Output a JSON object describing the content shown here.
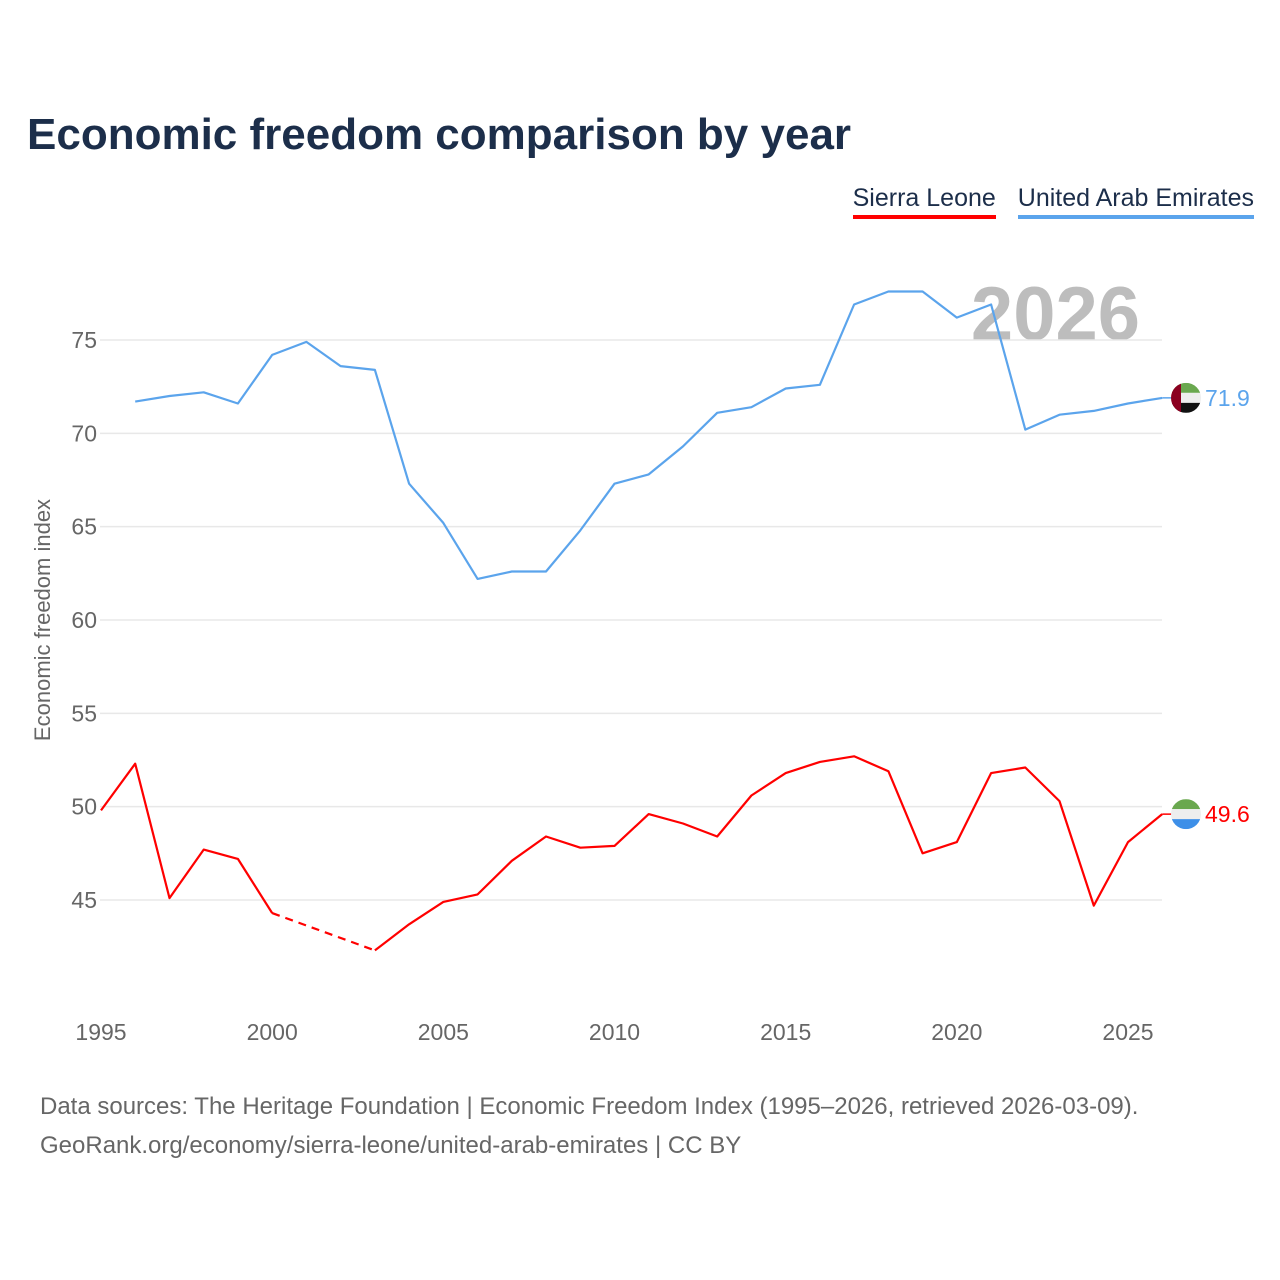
{
  "title": "Economic freedom comparison by year",
  "legend": [
    {
      "label": "Sierra Leone",
      "color": "#ff0000"
    },
    {
      "label": "United Arab Emirates",
      "color": "#5ba4ec"
    }
  ],
  "year_watermark": "2026",
  "sources": {
    "line1": "Data sources: The Heritage Foundation | Economic Freedom Index (1995–2026, retrieved 2026-03-09).",
    "line2": "GeoRank.org/economy/sierra-leone/united-arab-emirates | CC BY"
  },
  "chart_data": {
    "type": "line",
    "title": "Economic freedom comparison by year",
    "xlabel": "",
    "ylabel": "Economic freedom index",
    "xlim": [
      1995,
      2026
    ],
    "ylim": [
      40,
      80
    ],
    "x_ticks": [
      1995,
      2000,
      2005,
      2010,
      2015,
      2020,
      2025
    ],
    "y_ticks": [
      45,
      50,
      55,
      60,
      65,
      70,
      75
    ],
    "grid": true,
    "legend_position": "top-right",
    "series": [
      {
        "name": "Sierra Leone",
        "color": "#ff0000",
        "end_label": "49.6",
        "flag": "sierra-leone",
        "x": [
          1995,
          1996,
          1997,
          1998,
          1999,
          2000,
          2003,
          2004,
          2005,
          2006,
          2007,
          2008,
          2009,
          2010,
          2011,
          2012,
          2013,
          2014,
          2015,
          2016,
          2017,
          2018,
          2019,
          2020,
          2021,
          2022,
          2023,
          2024,
          2025,
          2026
        ],
        "values": [
          49.8,
          52.3,
          45.1,
          47.7,
          47.2,
          44.3,
          42.3,
          43.7,
          44.9,
          45.3,
          47.1,
          48.4,
          47.8,
          47.9,
          49.6,
          49.1,
          48.4,
          50.6,
          51.8,
          52.4,
          52.7,
          51.9,
          47.5,
          48.1,
          51.8,
          52.1,
          50.3,
          44.7,
          48.1,
          49.6
        ],
        "gap": [
          2001,
          2002
        ]
      },
      {
        "name": "United Arab Emirates",
        "color": "#5ba4ec",
        "end_label": "71.9",
        "flag": "uae",
        "x": [
          1996,
          1997,
          1998,
          1999,
          2000,
          2001,
          2002,
          2003,
          2004,
          2005,
          2006,
          2007,
          2008,
          2009,
          2010,
          2011,
          2012,
          2013,
          2014,
          2015,
          2016,
          2017,
          2018,
          2019,
          2020,
          2021,
          2022,
          2023,
          2024,
          2025,
          2026
        ],
        "values": [
          71.7,
          72.0,
          72.2,
          71.6,
          74.2,
          74.9,
          73.6,
          73.4,
          67.3,
          65.2,
          62.2,
          62.6,
          62.6,
          64.8,
          67.3,
          67.8,
          69.3,
          71.1,
          71.4,
          72.4,
          72.6,
          76.9,
          77.6,
          77.6,
          76.2,
          76.9,
          70.2,
          71.0,
          71.2,
          71.6,
          71.9
        ]
      }
    ]
  }
}
